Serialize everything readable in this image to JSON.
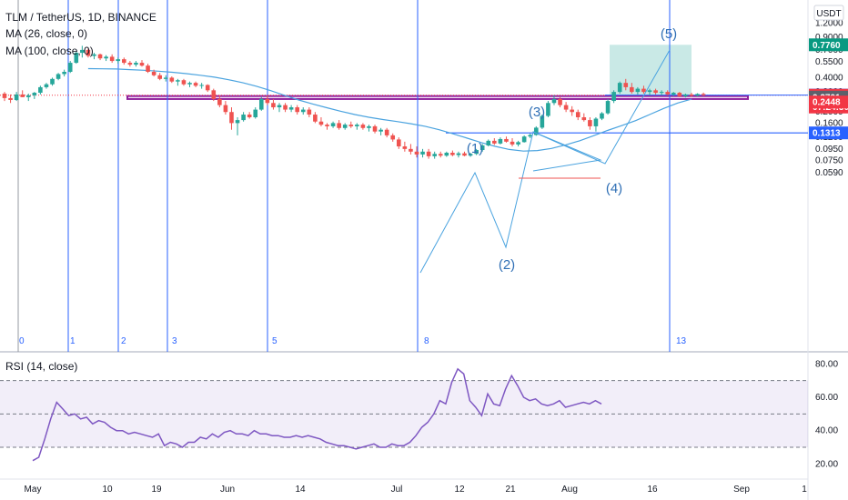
{
  "legend": {
    "title": "TLM / TetherUS, 1D, BINANCE",
    "ma26": "MA (26, close, 0)",
    "ma100": "MA (100, close, 0)",
    "rsi": "RSI (14, close)"
  },
  "currency": "USDT",
  "price_ticks": [
    "1.2000",
    "0.9000",
    "0.7000",
    "0.5500",
    "0.4000",
    "0.3000",
    "0.2000",
    "0.1600",
    "0.1200",
    "0.0950",
    "0.0750",
    "0.0590"
  ],
  "rsi_ticks": [
    "80.00",
    "60.00",
    "40.00",
    "20.00"
  ],
  "date_ticks": [
    "May",
    "10",
    "19",
    "Jun",
    "14",
    "Jul",
    "12",
    "21",
    "Aug",
    "16",
    "Sep",
    "1"
  ],
  "cycle_labels": [
    "0",
    "1",
    "2",
    "3",
    "5",
    "8",
    "13"
  ],
  "wave_labels": [
    "(1)",
    "(2)",
    "(3)",
    "(4)",
    "(5)"
  ],
  "price_tags": [
    {
      "text": "0.7760",
      "color": "#089981"
    },
    {
      "text": "0.2814",
      "color": "#2962ff"
    },
    {
      "text": "0.2807",
      "color": "#f23645"
    },
    {
      "text": "07:24:30",
      "color": "#f23645"
    },
    {
      "text": "0.2701",
      "color": "#5d606b"
    },
    {
      "text": "0.2448",
      "color": "#f23645"
    },
    {
      "text": "0.1313",
      "color": "#2962ff"
    }
  ],
  "colors": {
    "up": "#26a69a",
    "down": "#ef5350",
    "ma": "#4aa3df",
    "rsi": "#7e57c2",
    "fib": "#2962ff",
    "zone": "#8e1f9c"
  },
  "chart_data": {
    "type": "candlestick",
    "title": "TLM / TetherUS, 1D, BINANCE",
    "scale": "log",
    "ylim": [
      0.055,
      1.3
    ],
    "x_axis": "daily dates, late April 2021 to early September 2021",
    "candles": [
      {
        "o": 0.29,
        "h": 0.3,
        "l": 0.25,
        "c": 0.265
      },
      {
        "o": 0.265,
        "h": 0.285,
        "l": 0.24,
        "c": 0.255
      },
      {
        "o": 0.255,
        "h": 0.3,
        "l": 0.25,
        "c": 0.285
      },
      {
        "o": 0.285,
        "h": 0.31,
        "l": 0.27,
        "c": 0.27
      },
      {
        "o": 0.27,
        "h": 0.29,
        "l": 0.25,
        "c": 0.28
      },
      {
        "o": 0.28,
        "h": 0.3,
        "l": 0.26,
        "c": 0.295
      },
      {
        "o": 0.295,
        "h": 0.34,
        "l": 0.285,
        "c": 0.33
      },
      {
        "o": 0.33,
        "h": 0.36,
        "l": 0.32,
        "c": 0.35
      },
      {
        "o": 0.35,
        "h": 0.4,
        "l": 0.34,
        "c": 0.39
      },
      {
        "o": 0.39,
        "h": 0.44,
        "l": 0.38,
        "c": 0.43
      },
      {
        "o": 0.43,
        "h": 0.47,
        "l": 0.41,
        "c": 0.45
      },
      {
        "o": 0.45,
        "h": 0.56,
        "l": 0.44,
        "c": 0.54
      },
      {
        "o": 0.54,
        "h": 0.68,
        "l": 0.53,
        "c": 0.66
      },
      {
        "o": 0.66,
        "h": 0.76,
        "l": 0.6,
        "c": 0.7
      },
      {
        "o": 0.7,
        "h": 0.72,
        "l": 0.6,
        "c": 0.62
      },
      {
        "o": 0.62,
        "h": 0.66,
        "l": 0.58,
        "c": 0.64
      },
      {
        "o": 0.64,
        "h": 0.65,
        "l": 0.57,
        "c": 0.59
      },
      {
        "o": 0.59,
        "h": 0.63,
        "l": 0.56,
        "c": 0.61
      },
      {
        "o": 0.61,
        "h": 0.64,
        "l": 0.54,
        "c": 0.56
      },
      {
        "o": 0.56,
        "h": 0.6,
        "l": 0.53,
        "c": 0.58
      },
      {
        "o": 0.58,
        "h": 0.6,
        "l": 0.52,
        "c": 0.54
      },
      {
        "o": 0.54,
        "h": 0.56,
        "l": 0.5,
        "c": 0.52
      },
      {
        "o": 0.52,
        "h": 0.56,
        "l": 0.5,
        "c": 0.54
      },
      {
        "o": 0.54,
        "h": 0.57,
        "l": 0.5,
        "c": 0.51
      },
      {
        "o": 0.51,
        "h": 0.53,
        "l": 0.44,
        "c": 0.45
      },
      {
        "o": 0.45,
        "h": 0.47,
        "l": 0.41,
        "c": 0.42
      },
      {
        "o": 0.42,
        "h": 0.44,
        "l": 0.38,
        "c": 0.39
      },
      {
        "o": 0.39,
        "h": 0.42,
        "l": 0.37,
        "c": 0.4
      },
      {
        "o": 0.4,
        "h": 0.41,
        "l": 0.36,
        "c": 0.37
      },
      {
        "o": 0.37,
        "h": 0.39,
        "l": 0.34,
        "c": 0.38
      },
      {
        "o": 0.38,
        "h": 0.39,
        "l": 0.34,
        "c": 0.35
      },
      {
        "o": 0.35,
        "h": 0.37,
        "l": 0.33,
        "c": 0.36
      },
      {
        "o": 0.36,
        "h": 0.37,
        "l": 0.33,
        "c": 0.34
      },
      {
        "o": 0.34,
        "h": 0.36,
        "l": 0.32,
        "c": 0.345
      },
      {
        "o": 0.345,
        "h": 0.35,
        "l": 0.3,
        "c": 0.31
      },
      {
        "o": 0.31,
        "h": 0.32,
        "l": 0.25,
        "c": 0.26
      },
      {
        "o": 0.26,
        "h": 0.28,
        "l": 0.22,
        "c": 0.23
      },
      {
        "o": 0.23,
        "h": 0.25,
        "l": 0.19,
        "c": 0.2
      },
      {
        "o": 0.2,
        "h": 0.22,
        "l": 0.14,
        "c": 0.16
      },
      {
        "o": 0.16,
        "h": 0.18,
        "l": 0.125,
        "c": 0.17
      },
      {
        "o": 0.17,
        "h": 0.2,
        "l": 0.165,
        "c": 0.19
      },
      {
        "o": 0.19,
        "h": 0.2,
        "l": 0.175,
        "c": 0.18
      },
      {
        "o": 0.18,
        "h": 0.22,
        "l": 0.175,
        "c": 0.21
      },
      {
        "o": 0.21,
        "h": 0.27,
        "l": 0.205,
        "c": 0.26
      },
      {
        "o": 0.26,
        "h": 0.28,
        "l": 0.23,
        "c": 0.24
      },
      {
        "o": 0.24,
        "h": 0.26,
        "l": 0.21,
        "c": 0.22
      },
      {
        "o": 0.22,
        "h": 0.24,
        "l": 0.2,
        "c": 0.23
      },
      {
        "o": 0.23,
        "h": 0.24,
        "l": 0.2,
        "c": 0.21
      },
      {
        "o": 0.21,
        "h": 0.23,
        "l": 0.2,
        "c": 0.22
      },
      {
        "o": 0.22,
        "h": 0.23,
        "l": 0.19,
        "c": 0.2
      },
      {
        "o": 0.2,
        "h": 0.22,
        "l": 0.19,
        "c": 0.21
      },
      {
        "o": 0.21,
        "h": 0.22,
        "l": 0.18,
        "c": 0.19
      },
      {
        "o": 0.19,
        "h": 0.2,
        "l": 0.16,
        "c": 0.165
      },
      {
        "o": 0.165,
        "h": 0.18,
        "l": 0.15,
        "c": 0.155
      },
      {
        "o": 0.155,
        "h": 0.16,
        "l": 0.14,
        "c": 0.15
      },
      {
        "o": 0.15,
        "h": 0.165,
        "l": 0.145,
        "c": 0.16
      },
      {
        "o": 0.16,
        "h": 0.17,
        "l": 0.14,
        "c": 0.145
      },
      {
        "o": 0.145,
        "h": 0.16,
        "l": 0.14,
        "c": 0.155
      },
      {
        "o": 0.155,
        "h": 0.165,
        "l": 0.145,
        "c": 0.15
      },
      {
        "o": 0.15,
        "h": 0.16,
        "l": 0.14,
        "c": 0.155
      },
      {
        "o": 0.155,
        "h": 0.16,
        "l": 0.14,
        "c": 0.145
      },
      {
        "o": 0.145,
        "h": 0.155,
        "l": 0.135,
        "c": 0.15
      },
      {
        "o": 0.15,
        "h": 0.155,
        "l": 0.13,
        "c": 0.135
      },
      {
        "o": 0.135,
        "h": 0.145,
        "l": 0.125,
        "c": 0.14
      },
      {
        "o": 0.14,
        "h": 0.145,
        "l": 0.12,
        "c": 0.125
      },
      {
        "o": 0.125,
        "h": 0.13,
        "l": 0.11,
        "c": 0.115
      },
      {
        "o": 0.115,
        "h": 0.12,
        "l": 0.095,
        "c": 0.1
      },
      {
        "o": 0.1,
        "h": 0.11,
        "l": 0.09,
        "c": 0.095
      },
      {
        "o": 0.095,
        "h": 0.105,
        "l": 0.085,
        "c": 0.09
      },
      {
        "o": 0.09,
        "h": 0.1,
        "l": 0.08,
        "c": 0.085
      },
      {
        "o": 0.085,
        "h": 0.095,
        "l": 0.08,
        "c": 0.09
      },
      {
        "o": 0.09,
        "h": 0.095,
        "l": 0.078,
        "c": 0.082
      },
      {
        "o": 0.082,
        "h": 0.09,
        "l": 0.078,
        "c": 0.086
      },
      {
        "o": 0.086,
        "h": 0.09,
        "l": 0.08,
        "c": 0.083
      },
      {
        "o": 0.083,
        "h": 0.09,
        "l": 0.081,
        "c": 0.088
      },
      {
        "o": 0.088,
        "h": 0.092,
        "l": 0.082,
        "c": 0.084
      },
      {
        "o": 0.084,
        "h": 0.09,
        "l": 0.08,
        "c": 0.087
      },
      {
        "o": 0.087,
        "h": 0.09,
        "l": 0.082,
        "c": 0.083
      },
      {
        "o": 0.083,
        "h": 0.088,
        "l": 0.081,
        "c": 0.086
      },
      {
        "o": 0.086,
        "h": 0.095,
        "l": 0.084,
        "c": 0.093
      },
      {
        "o": 0.093,
        "h": 0.105,
        "l": 0.09,
        "c": 0.102
      },
      {
        "o": 0.102,
        "h": 0.115,
        "l": 0.1,
        "c": 0.112
      },
      {
        "o": 0.112,
        "h": 0.118,
        "l": 0.103,
        "c": 0.106
      },
      {
        "o": 0.106,
        "h": 0.12,
        "l": 0.104,
        "c": 0.116
      },
      {
        "o": 0.116,
        "h": 0.122,
        "l": 0.108,
        "c": 0.11
      },
      {
        "o": 0.11,
        "h": 0.118,
        "l": 0.1,
        "c": 0.104
      },
      {
        "o": 0.104,
        "h": 0.112,
        "l": 0.1,
        "c": 0.109
      },
      {
        "o": 0.109,
        "h": 0.125,
        "l": 0.108,
        "c": 0.122
      },
      {
        "o": 0.122,
        "h": 0.13,
        "l": 0.118,
        "c": 0.126
      },
      {
        "o": 0.126,
        "h": 0.15,
        "l": 0.124,
        "c": 0.146
      },
      {
        "o": 0.146,
        "h": 0.19,
        "l": 0.142,
        "c": 0.185
      },
      {
        "o": 0.185,
        "h": 0.25,
        "l": 0.18,
        "c": 0.24
      },
      {
        "o": 0.24,
        "h": 0.28,
        "l": 0.23,
        "c": 0.26
      },
      {
        "o": 0.26,
        "h": 0.27,
        "l": 0.22,
        "c": 0.23
      },
      {
        "o": 0.23,
        "h": 0.245,
        "l": 0.2,
        "c": 0.21
      },
      {
        "o": 0.21,
        "h": 0.225,
        "l": 0.185,
        "c": 0.2
      },
      {
        "o": 0.2,
        "h": 0.21,
        "l": 0.17,
        "c": 0.18
      },
      {
        "o": 0.18,
        "h": 0.195,
        "l": 0.165,
        "c": 0.17
      },
      {
        "o": 0.17,
        "h": 0.18,
        "l": 0.14,
        "c": 0.15
      },
      {
        "o": 0.15,
        "h": 0.18,
        "l": 0.135,
        "c": 0.175
      },
      {
        "o": 0.175,
        "h": 0.2,
        "l": 0.17,
        "c": 0.195
      },
      {
        "o": 0.195,
        "h": 0.26,
        "l": 0.19,
        "c": 0.25
      },
      {
        "o": 0.25,
        "h": 0.31,
        "l": 0.24,
        "c": 0.3
      },
      {
        "o": 0.3,
        "h": 0.37,
        "l": 0.29,
        "c": 0.36
      },
      {
        "o": 0.36,
        "h": 0.39,
        "l": 0.31,
        "c": 0.33
      },
      {
        "o": 0.33,
        "h": 0.36,
        "l": 0.29,
        "c": 0.3
      },
      {
        "o": 0.3,
        "h": 0.33,
        "l": 0.285,
        "c": 0.32
      },
      {
        "o": 0.32,
        "h": 0.34,
        "l": 0.29,
        "c": 0.3
      },
      {
        "o": 0.3,
        "h": 0.32,
        "l": 0.28,
        "c": 0.31
      },
      {
        "o": 0.31,
        "h": 0.32,
        "l": 0.285,
        "c": 0.295
      },
      {
        "o": 0.295,
        "h": 0.31,
        "l": 0.28,
        "c": 0.3
      },
      {
        "o": 0.3,
        "h": 0.31,
        "l": 0.28,
        "c": 0.285
      },
      {
        "o": 0.285,
        "h": 0.3,
        "l": 0.275,
        "c": 0.295
      },
      {
        "o": 0.295,
        "h": 0.3,
        "l": 0.27,
        "c": 0.275
      },
      {
        "o": 0.275,
        "h": 0.29,
        "l": 0.268,
        "c": 0.285
      },
      {
        "o": 0.285,
        "h": 0.295,
        "l": 0.272,
        "c": 0.278
      },
      {
        "o": 0.278,
        "h": 0.292,
        "l": 0.274,
        "c": 0.288
      },
      {
        "o": 0.288,
        "h": 0.296,
        "l": 0.276,
        "c": 0.281
      }
    ],
    "ma26": [
      0.48,
      0.478,
      0.476,
      0.47,
      0.464,
      0.456,
      0.446,
      0.434,
      0.42,
      0.404,
      0.384,
      0.362,
      0.336,
      0.308,
      0.28,
      0.255,
      0.235,
      0.218,
      0.203,
      0.19,
      0.18,
      0.172,
      0.165,
      0.158,
      0.15,
      0.14,
      0.129,
      0.118,
      0.108,
      0.1,
      0.094,
      0.091,
      0.092,
      0.096,
      0.103,
      0.112,
      0.124,
      0.138,
      0.152,
      0.168,
      0.19,
      0.215,
      0.24,
      0.26
    ],
    "ma26_start": 14,
    "ma100": [
      0.455,
      0.45,
      0.445,
      0.447,
      0.45,
      0.452,
      0.453,
      0.45,
      0.44,
      0.424,
      0.404,
      0.38,
      0.355,
      0.33,
      0.306,
      0.284,
      0.264,
      0.246,
      0.23,
      0.218,
      0.208,
      0.199,
      0.191,
      0.182,
      0.172,
      0.16,
      0.147,
      0.135,
      0.124,
      0.115,
      0.108,
      0.103,
      0.101,
      0.102,
      0.104,
      0.108,
      0.115,
      0.126,
      0.142,
      0.162,
      0.185,
      0.21,
      0.24,
      0.27
    ],
    "rsi": [
      22,
      24,
      35,
      47,
      57,
      53,
      49,
      50,
      47,
      48,
      44,
      46,
      45,
      42,
      40,
      40,
      38,
      39,
      38,
      37,
      36,
      38,
      31,
      33,
      32,
      30,
      33,
      33,
      36,
      35,
      38,
      36,
      39,
      40,
      38,
      38,
      37,
      40,
      38,
      38,
      37,
      37,
      36,
      36,
      37,
      36,
      37,
      36,
      35,
      33,
      32,
      31,
      31,
      30,
      29,
      30,
      31,
      32,
      30,
      30,
      32,
      31,
      31,
      33,
      37,
      42,
      45,
      50,
      58,
      56,
      69,
      77,
      74,
      58,
      54,
      49,
      62,
      56,
      55,
      65,
      73,
      67,
      60,
      58,
      59,
      56,
      55,
      56,
      58,
      54,
      55,
      56,
      57,
      56,
      58,
      56
    ],
    "rsi_bands": [
      70,
      50,
      30
    ],
    "levels": {
      "target": 0.776,
      "line_blue": 0.2814,
      "last": 0.2807,
      "support": 0.2701,
      "stop": 0.2448,
      "low_line": 0.1313
    },
    "waves": [
      "(1)",
      "(2)",
      "(3)",
      "(4)",
      "(5)"
    ],
    "fibonacci_time_cycles": [
      "0",
      "1",
      "2",
      "3",
      "5",
      "8",
      "13"
    ]
  }
}
